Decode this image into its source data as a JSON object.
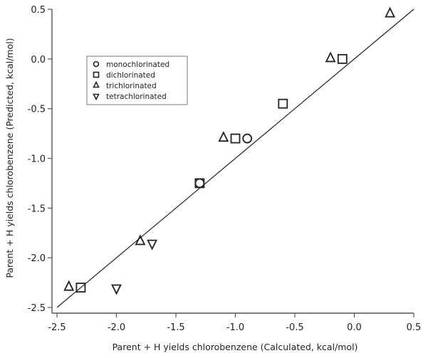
{
  "chart_data": {
    "type": "scatter",
    "title": "",
    "xlabel": "Parent + H yields chlorobenzene (Calculated, kcal/mol)",
    "ylabel": "Parent + H yields chlorobenzene (Predicted, kcal/mol)",
    "xlim": [
      -2.5,
      0.5
    ],
    "ylim": [
      -2.5,
      0.5
    ],
    "x_ticks": [
      "-2.5",
      "-2.0",
      "-1.5",
      "-1.0",
      "-0.5",
      "0.0",
      "0.5"
    ],
    "y_ticks": [
      "0.5",
      "0.0",
      "-0.5",
      "-1.0",
      "-1.5",
      "-2.0",
      "-2.5"
    ],
    "grid": false,
    "legend_position": "upper left",
    "reference_line": {
      "label": "y = x",
      "from": [
        -2.5,
        -2.5
      ],
      "to": [
        0.5,
        0.5
      ]
    },
    "series": [
      {
        "name": "monochlorinated",
        "marker": "circle",
        "points": [
          [
            -0.9,
            -0.8
          ],
          [
            -1.3,
            -1.25
          ]
        ]
      },
      {
        "name": "dichlorinated",
        "marker": "square",
        "points": [
          [
            -2.3,
            -2.3
          ],
          [
            -1.3,
            -1.25
          ],
          [
            -1.0,
            -0.8
          ],
          [
            -0.6,
            -0.45
          ],
          [
            -0.1,
            0.0
          ]
        ]
      },
      {
        "name": "trichlorinated",
        "marker": "triangle-up",
        "points": [
          [
            -2.4,
            -2.29
          ],
          [
            -1.8,
            -1.83
          ],
          [
            -1.1,
            -0.79
          ],
          [
            -0.2,
            0.01
          ],
          [
            0.3,
            0.46
          ]
        ]
      },
      {
        "name": "tetrachlorinated",
        "marker": "triangle-down",
        "points": [
          [
            -2.0,
            -2.31
          ],
          [
            -1.7,
            -1.86
          ]
        ]
      }
    ]
  },
  "legend": {
    "items": [
      {
        "label": "monochlorinated",
        "icon": "circle-marker-icon"
      },
      {
        "label": "dichlorinated",
        "icon": "square-marker-icon"
      },
      {
        "label": "trichlorinated",
        "icon": "triangle-up-marker-icon"
      },
      {
        "label": "tetrachlorinated",
        "icon": "triangle-down-marker-icon"
      }
    ]
  },
  "colors": {
    "ink": "#222222",
    "axis": "#555555",
    "background": "#ffffff"
  }
}
